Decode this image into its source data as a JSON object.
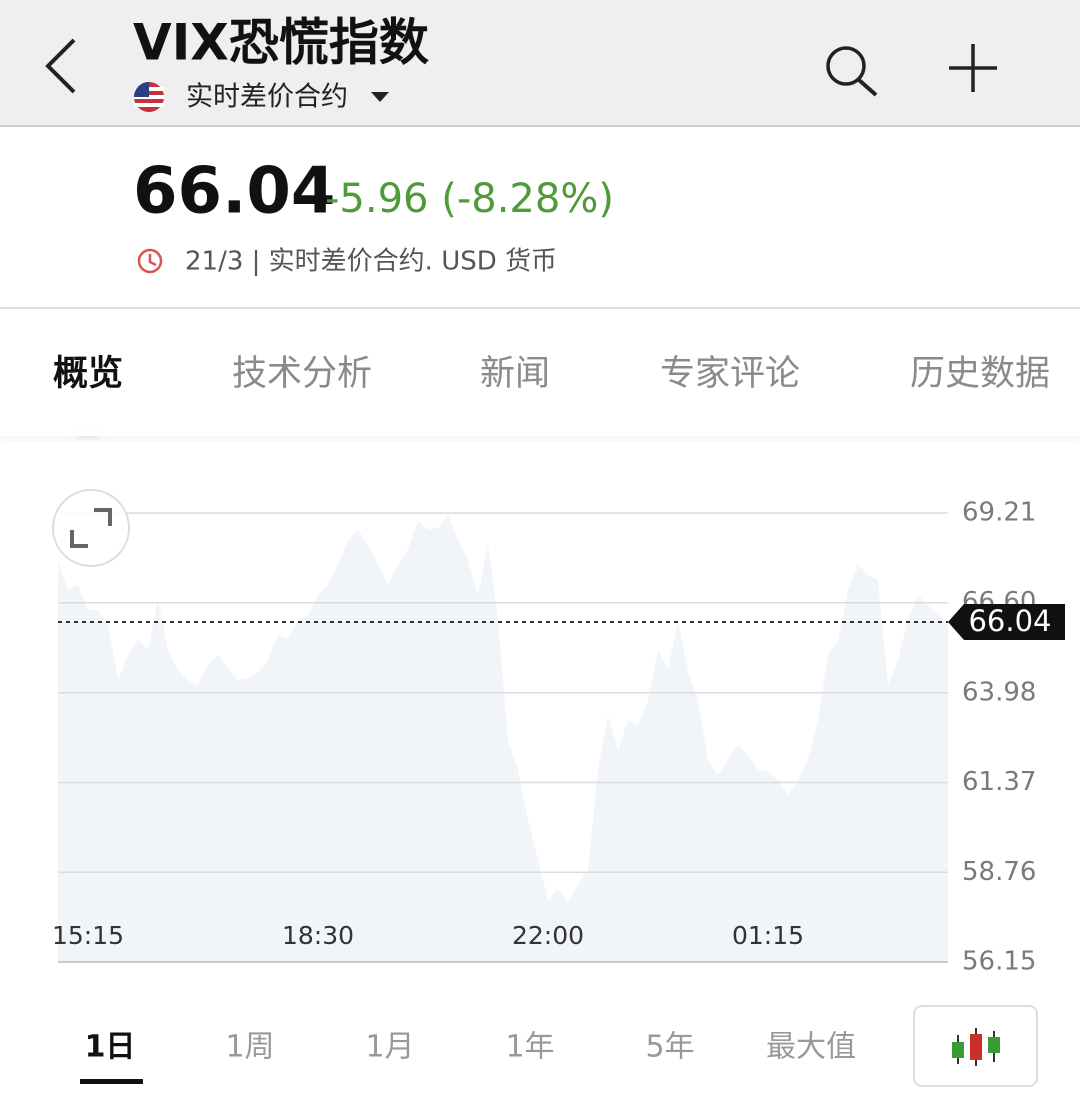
{
  "header": {
    "title": "VIX恐慌指数",
    "subtitle": "实时差价合约"
  },
  "quote": {
    "price": "66.04",
    "change": "-5.96 (-8.28%)",
    "meta": "21/3 | 实时差价合约.  USD 货币"
  },
  "tabs": [
    "概览",
    "技术分析",
    "新闻",
    "专家评论",
    "历史数据"
  ],
  "range_buttons": [
    "1日",
    "1周",
    "1月",
    "1年",
    "5年",
    "最大值"
  ],
  "chart_data": {
    "type": "line",
    "color": "#52739f",
    "fill": "#f1f4f9",
    "grid": true,
    "categories": [
      null,
      null,
      null,
      "15:15",
      null,
      null,
      null,
      null,
      null,
      null,
      null,
      null,
      null,
      null,
      null,
      null,
      null,
      null,
      null,
      null,
      null,
      null,
      null,
      null,
      null,
      null,
      "18:30",
      null,
      null,
      null,
      null,
      null,
      null,
      null,
      null,
      null,
      null,
      null,
      null,
      null,
      null,
      null,
      null,
      null,
      null,
      null,
      null,
      null,
      null,
      "22:00",
      null,
      null,
      null,
      null,
      null,
      null,
      null,
      null,
      null,
      null,
      null,
      null,
      null,
      null,
      null,
      null,
      null,
      null,
      null,
      null,
      null,
      "01:15",
      null,
      null,
      null,
      null,
      null,
      null,
      null,
      null,
      null,
      null,
      null,
      null,
      null,
      null,
      null,
      null,
      null,
      null
    ],
    "values": [
      67.78,
      66.97,
      67.12,
      66.39,
      66.39,
      65.95,
      64.35,
      65.08,
      65.52,
      65.23,
      66.68,
      65.23,
      64.64,
      64.35,
      64.21,
      64.79,
      65.08,
      64.7,
      64.35,
      64.41,
      64.59,
      64.93,
      65.66,
      65.57,
      66.1,
      66.24,
      66.82,
      67.12,
      67.7,
      68.42,
      68.72,
      68.28,
      67.7,
      67.12,
      67.7,
      68.13,
      69.01,
      68.72,
      68.77,
      69.15,
      68.42,
      67.84,
      66.82,
      68.28,
      66.1,
      62.61,
      61.73,
      60.28,
      59.12,
      57.95,
      58.25,
      57.9,
      58.39,
      58.83,
      61.73,
      63.33,
      62.32,
      63.19,
      63.04,
      63.77,
      65.23,
      64.64,
      66.1,
      64.59,
      63.77,
      62.03,
      61.59,
      62.03,
      62.46,
      62.17,
      61.73,
      61.68,
      61.44,
      61.01,
      61.44,
      62.03,
      63.19,
      65.08,
      65.52,
      66.97,
      67.7,
      67.41,
      67.26,
      64.21,
      64.93,
      66.1,
      66.82,
      66.53,
      66.24,
      66.04
    ],
    "last_value": 66.04,
    "ylim": [
      56.15,
      69.21
    ],
    "yticks": [
      56.15,
      58.76,
      61.37,
      63.98,
      {
        "value": 66.6,
        "label": "66.60"
      },
      69.21
    ]
  }
}
